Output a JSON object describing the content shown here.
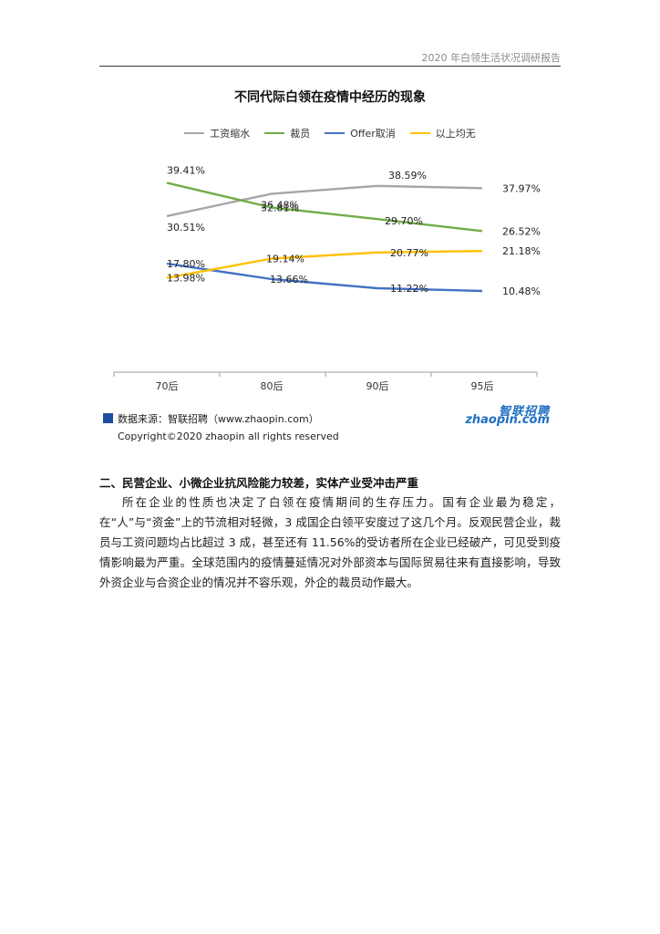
{
  "header": {
    "report_title": "2020 年白领生活状况调研报告"
  },
  "colors": {
    "wage_cut": "#a6a6a6",
    "layoff": "#70ad47",
    "offer_cancel": "#4472c4",
    "none": "#ffc000",
    "axis": "#9e9e9e"
  },
  "chart_data": {
    "type": "line",
    "title": "不同代际白领在疫情中经历的现象",
    "categories": [
      "70后",
      "80后",
      "90后",
      "95后"
    ],
    "series": [
      {
        "name": "工资缩水",
        "color": "#a6a6a6",
        "values": [
          30.51,
          36.48,
          38.59,
          37.97
        ]
      },
      {
        "name": "裁员",
        "color": "#70ad47",
        "values": [
          39.41,
          32.81,
          29.7,
          26.52
        ]
      },
      {
        "name": "Offer取消",
        "color": "#4472c4",
        "values": [
          17.8,
          13.66,
          11.22,
          10.48
        ]
      },
      {
        "name": "以上均无",
        "color": "#ffc000",
        "values": [
          13.98,
          19.14,
          20.77,
          21.18
        ]
      }
    ],
    "value_suffix": "%",
    "legend_position": "top",
    "grid": false
  },
  "source": {
    "text": "数据来源：智联招聘（www.zhaopin.com）",
    "logo_cn": "智联招聘",
    "logo_en": "zhaopin.com"
  },
  "copyright": "Copyright©2020 zhaopin all rights reserved",
  "section": {
    "heading": "二、民营企业、小微企业抗风险能力较差，实体产业受冲击严重",
    "paragraph": "所在企业的性质也决定了白领在疫情期间的生存压力。国有企业最为稳定，在“人”与“资金”上的节流相对轻微，3 成国企白领平安度过了这几个月。反观民营企业，裁员与工资问题均占比超过 3 成，甚至还有 11.56%的受访者所在企业已经破产，可见受到疫情影响最为严重。全球范围内的疫情蔓延情况对外部资本与国际贸易往来有直接影响，导致外资企业与合资企业的情况并不容乐观，外企的裁员动作最大。"
  }
}
